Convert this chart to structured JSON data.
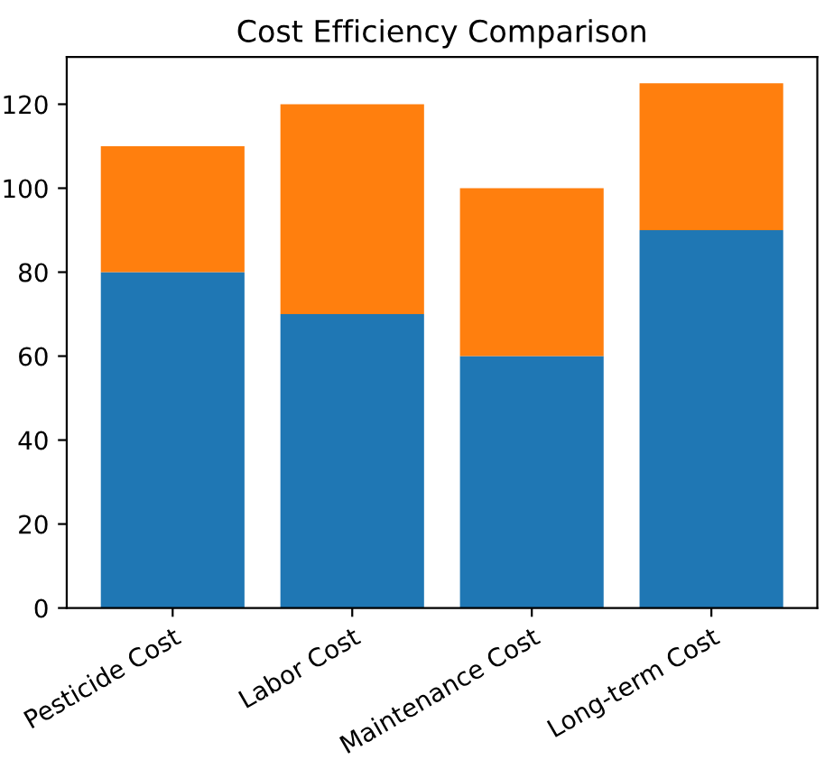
{
  "chart_data": {
    "type": "bar",
    "title": "Cost Efficiency Comparison",
    "categories": [
      "Pesticide Cost",
      "Labor Cost",
      "Maintenance Cost",
      "Long-term Cost"
    ],
    "stacked": true,
    "series": [
      {
        "color": "#1f77b4",
        "values": [
          80,
          70,
          60,
          90
        ]
      },
      {
        "color": "#ff7f0e",
        "values": [
          30,
          50,
          40,
          35
        ]
      }
    ],
    "ylim": [
      0,
      131.25
    ],
    "yticks": [
      0,
      20,
      40,
      60,
      80,
      100,
      120
    ],
    "grid": false,
    "legend": false
  }
}
